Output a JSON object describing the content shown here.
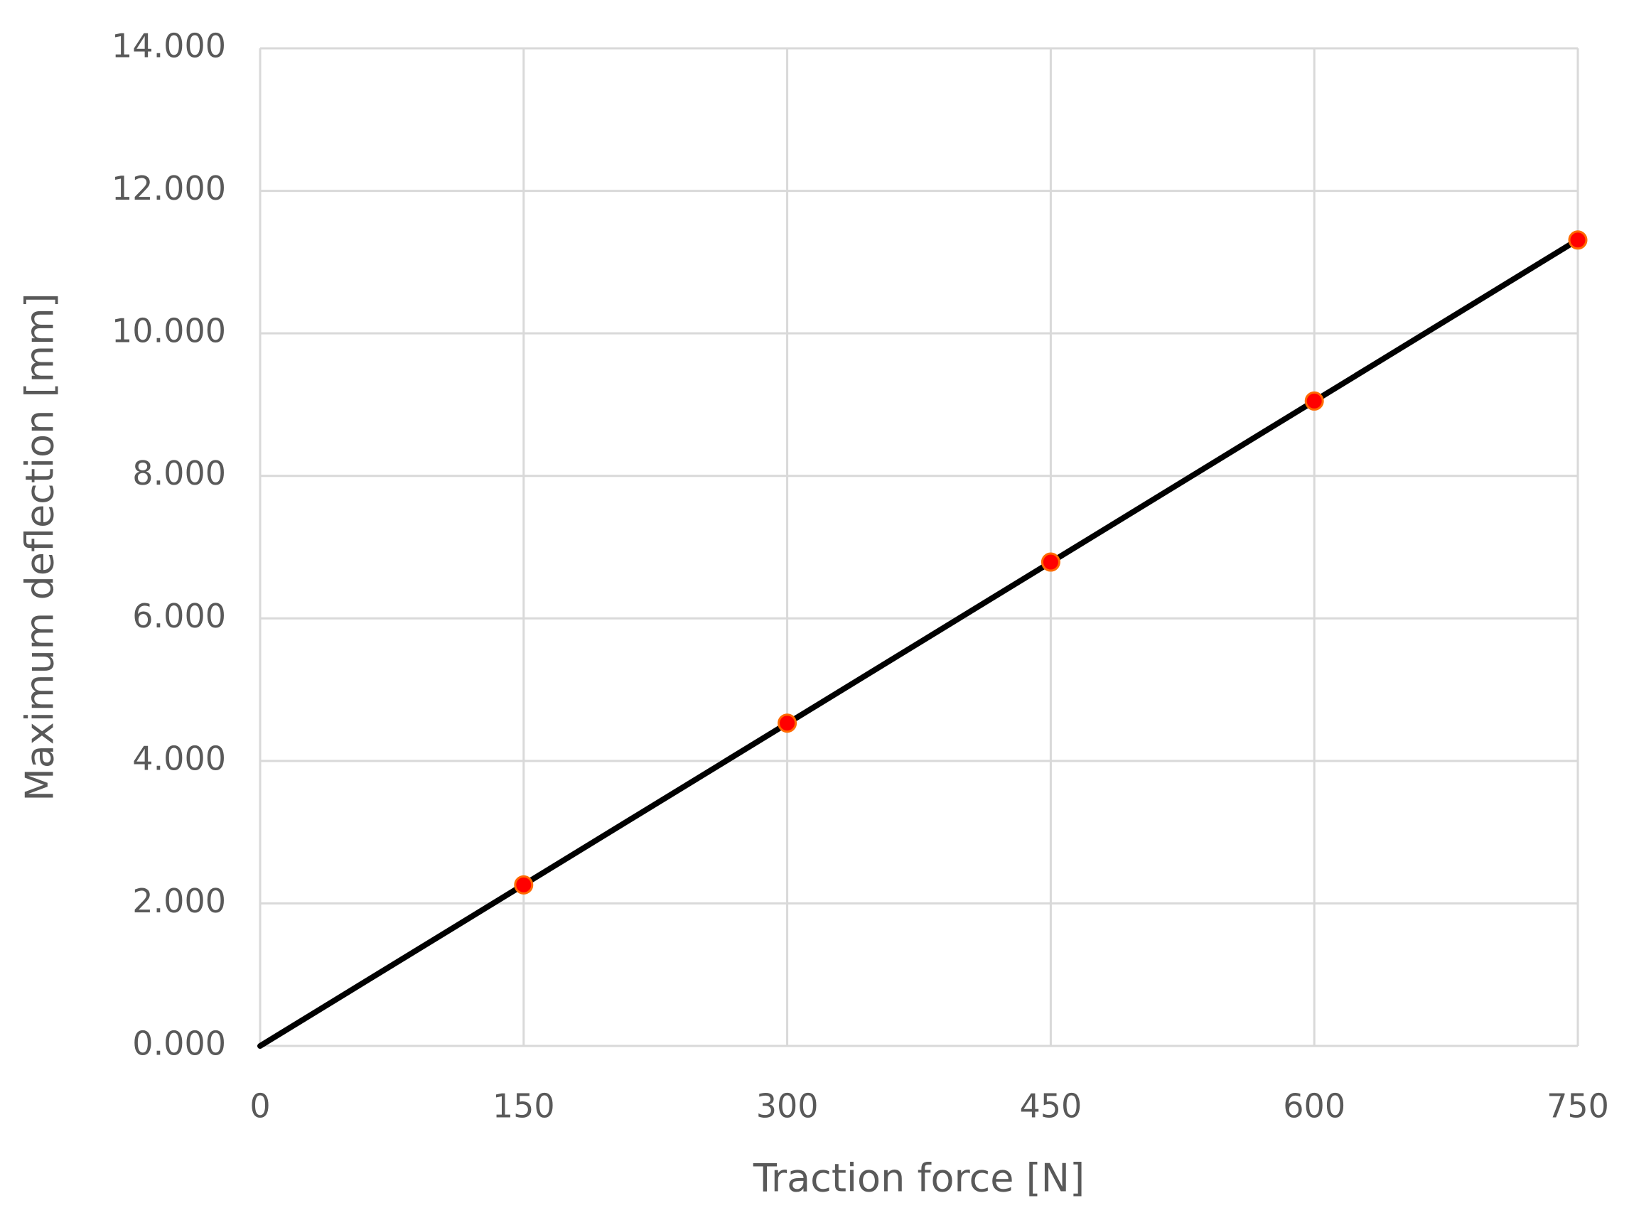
{
  "chart_data": {
    "type": "scatter",
    "x_label": "Traction force [N]",
    "y_label": "Maximum deflection [mm]",
    "series": [
      {
        "x": [
          150,
          300,
          450,
          600,
          750
        ],
        "values": [
          2.26,
          4.53,
          6.79,
          9.05,
          11.31
        ],
        "color": "#ff0000"
      }
    ],
    "trendline": {
      "color": "#000000",
      "intercept": 0
    },
    "xlim": [
      0,
      750
    ],
    "xticks": [
      0,
      150,
      300,
      450,
      600,
      750
    ],
    "ylim": [
      0,
      14
    ],
    "yticks": [
      {
        "value": 0,
        "label": "0.000"
      },
      {
        "value": 2,
        "label": "2.000"
      },
      {
        "value": 4,
        "label": "4.000"
      },
      {
        "value": 6,
        "label": "6.000"
      },
      {
        "value": 8,
        "label": "8.000"
      },
      {
        "value": 10,
        "label": "10.000"
      },
      {
        "value": 12,
        "label": "12.000"
      },
      {
        "value": 14,
        "label": "14.000"
      }
    ],
    "grid": true
  }
}
